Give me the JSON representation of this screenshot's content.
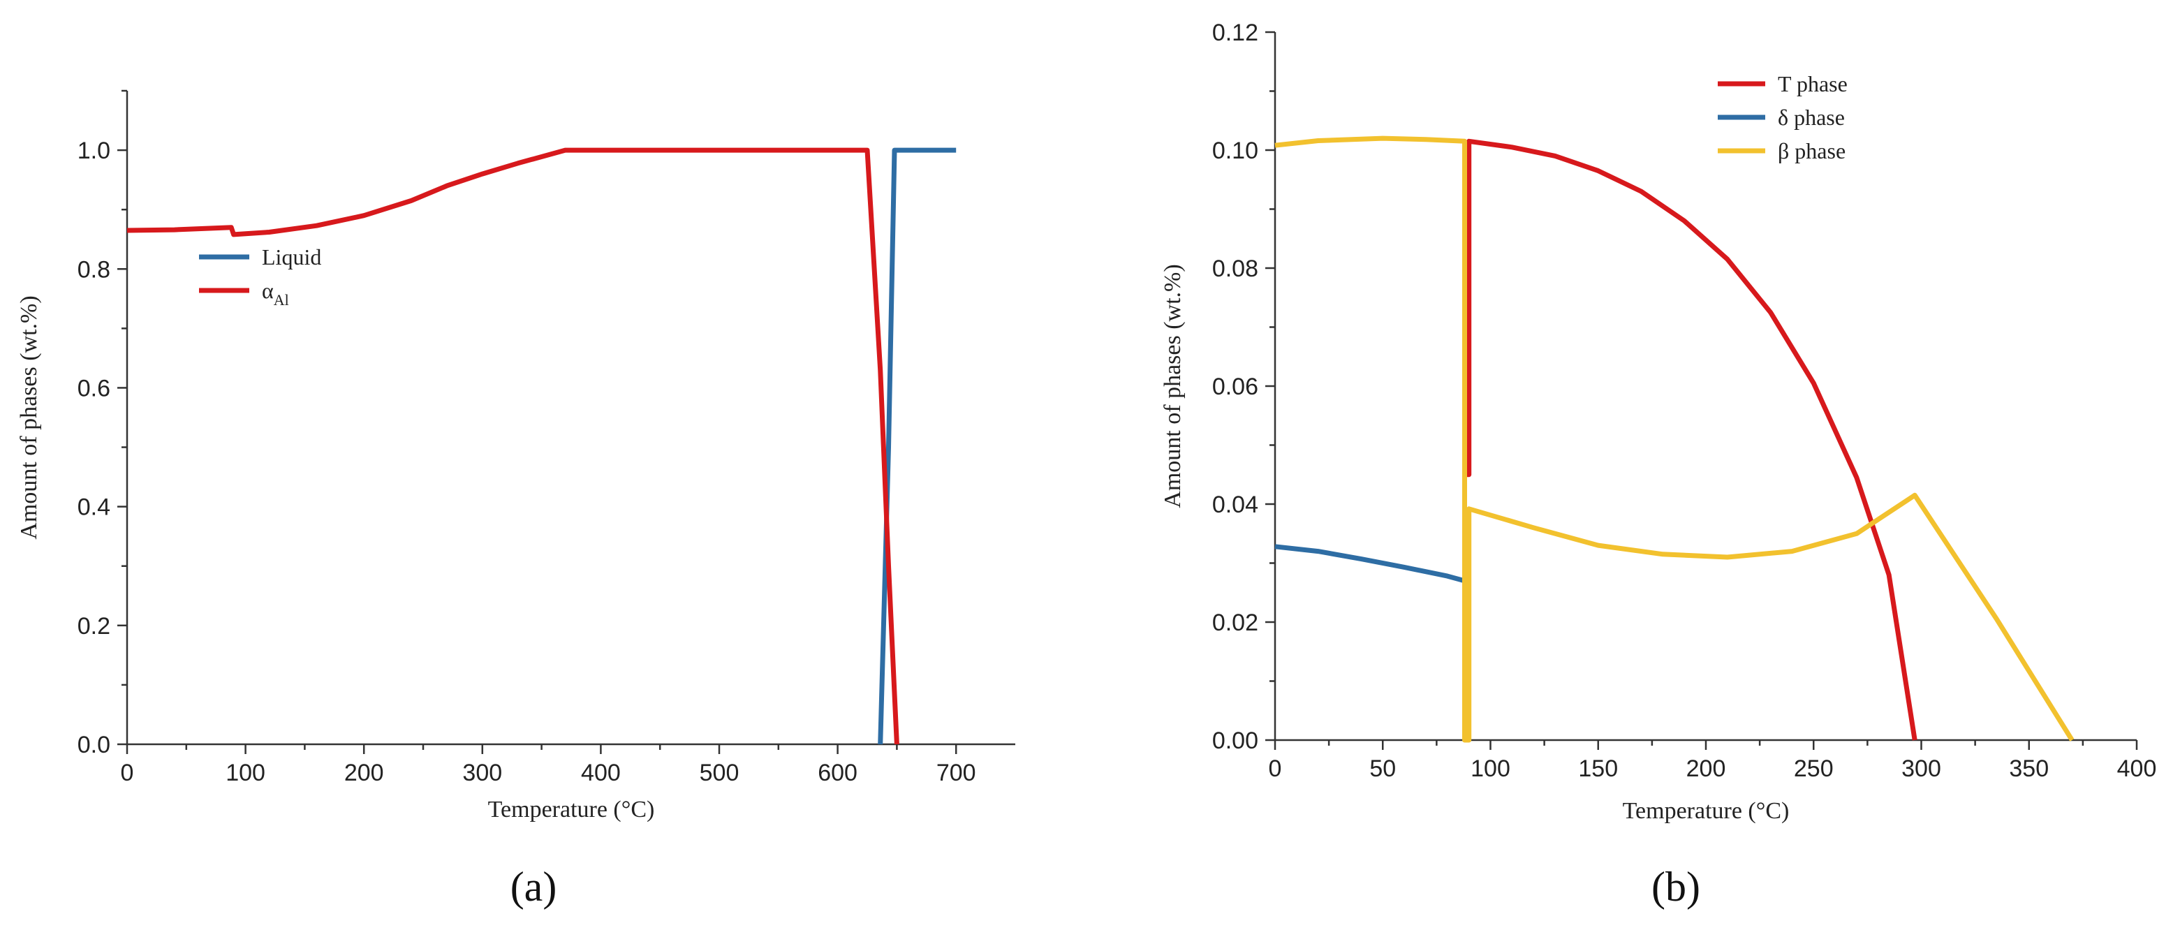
{
  "chart_data": [
    {
      "type": "line",
      "panel_label": "(a)",
      "xlabel": "Temperature (°C)",
      "ylabel": "Amount of phases (wt.%)",
      "xlim": [
        0,
        750
      ],
      "ylim": [
        0,
        1.1
      ],
      "xticks": [
        0,
        100,
        200,
        300,
        400,
        500,
        600,
        700
      ],
      "xtick_labels": [
        "0",
        "100",
        "200",
        "300",
        "400",
        "500",
        "600",
        "700"
      ],
      "yticks": [
        0.0,
        0.2,
        0.4,
        0.6,
        0.8,
        1.0
      ],
      "ytick_labels": [
        "0.0",
        "0.2",
        "0.4",
        "0.6",
        "0.8",
        "1.0"
      ],
      "legend_position": "center-left",
      "grid": false,
      "series": [
        {
          "name": "Liquid",
          "color": "#2e6da4",
          "points": [
            [
              636,
              0
            ],
            [
              643,
              0.5
            ],
            [
              648,
              1.0
            ],
            [
              700,
              1.0
            ]
          ]
        },
        {
          "name": "α",
          "name_subscript": "Al",
          "color": "#d7191c",
          "points": [
            [
              0,
              0.865
            ],
            [
              40,
              0.866
            ],
            [
              88,
              0.87
            ],
            [
              90,
              0.858
            ],
            [
              120,
              0.862
            ],
            [
              160,
              0.873
            ],
            [
              200,
              0.89
            ],
            [
              240,
              0.915
            ],
            [
              270,
              0.94
            ],
            [
              300,
              0.96
            ],
            [
              330,
              0.978
            ],
            [
              370,
              1.0
            ],
            [
              625,
              1.0
            ],
            [
              636,
              0.63
            ],
            [
              643,
              0.3
            ],
            [
              650,
              0.0
            ]
          ]
        }
      ]
    },
    {
      "type": "line",
      "panel_label": "(b)",
      "xlabel": "Temperature (°C)",
      "ylabel": "Amount of phases (wt.%)",
      "xlim": [
        0,
        400
      ],
      "ylim": [
        0,
        0.12
      ],
      "xticks": [
        0,
        50,
        100,
        150,
        200,
        250,
        300,
        350,
        400
      ],
      "xtick_labels": [
        "0",
        "50",
        "100",
        "150",
        "200",
        "250",
        "300",
        "350",
        "400"
      ],
      "yticks": [
        0.0,
        0.02,
        0.04,
        0.06,
        0.08,
        0.1,
        0.12
      ],
      "ytick_labels": [
        "0.00",
        "0.02",
        "0.04",
        "0.06",
        "0.08",
        "0.10",
        "0.12"
      ],
      "legend_position": "top-center",
      "grid": false,
      "series": [
        {
          "name": "T phase",
          "color": "#d7191c",
          "points": [
            [
              88,
              0
            ],
            [
              88,
              0.045
            ],
            [
              90,
              0.045
            ],
            [
              90,
              0.1015
            ],
            [
              110,
              0.1005
            ],
            [
              130,
              0.099
            ],
            [
              150,
              0.0965
            ],
            [
              170,
              0.093
            ],
            [
              190,
              0.088
            ],
            [
              210,
              0.0815
            ],
            [
              230,
              0.0725
            ],
            [
              250,
              0.0605
            ],
            [
              270,
              0.0445
            ],
            [
              285,
              0.028
            ],
            [
              297,
              0.0
            ]
          ]
        },
        {
          "name": "δ phase",
          "color": "#2e6da4",
          "points": [
            [
              0,
              0.0328
            ],
            [
              20,
              0.032
            ],
            [
              40,
              0.0307
            ],
            [
              60,
              0.0293
            ],
            [
              80,
              0.0278
            ],
            [
              88,
              0.027
            ]
          ]
        },
        {
          "name": "β phase",
          "color": "#f2c12e",
          "points": [
            [
              0,
              0.1008
            ],
            [
              20,
              0.1016
            ],
            [
              50,
              0.102
            ],
            [
              70,
              0.1018
            ],
            [
              88,
              0.1015
            ],
            [
              88,
              0.0
            ],
            [
              90,
              0.0
            ],
            [
              90,
              0.0392
            ],
            [
              120,
              0.036
            ],
            [
              150,
              0.033
            ],
            [
              180,
              0.0315
            ],
            [
              210,
              0.031
            ],
            [
              240,
              0.032
            ],
            [
              270,
              0.035
            ],
            [
              297,
              0.0415
            ],
            [
              335,
              0.0205
            ],
            [
              370,
              0.0
            ]
          ]
        }
      ]
    }
  ]
}
